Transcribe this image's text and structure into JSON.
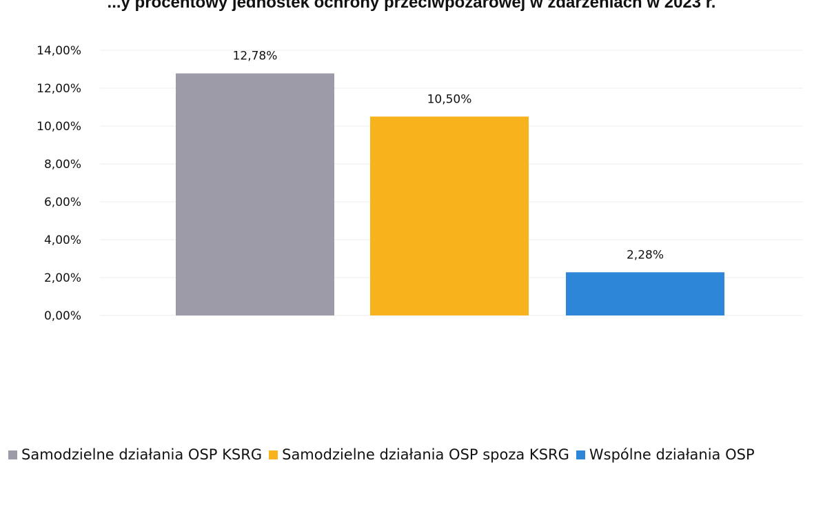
{
  "chart_data": {
    "type": "bar",
    "title": "...y procentowy jednostek ochrony przeciwpożarowej w zdarzeniach w 2023 r.",
    "categories": [
      "Samodzielne działania OSP KSRG",
      "Samodzielne działania OSP spoza KSRG",
      "Wspólne działania OSP"
    ],
    "values": [
      12.78,
      10.5,
      2.28
    ],
    "data_labels": [
      "12,78%",
      "10,50%",
      "2,28%"
    ],
    "y_ticks": [
      "0,00%",
      "2,00%",
      "4,00%",
      "6,00%",
      "8,00%",
      "10,00%",
      "12,00%",
      "14,00%"
    ],
    "ylim": [
      0,
      14
    ],
    "colors": [
      "#9d9ba8",
      "#f7b21c",
      "#2e86d8"
    ],
    "grid": true,
    "legend_position": "bottom"
  },
  "legend": {
    "items": [
      "Samodzielne działania OSP KSRG",
      "Samodzielne działania OSP spoza KSRG",
      "Wspólne działania OSP"
    ]
  }
}
